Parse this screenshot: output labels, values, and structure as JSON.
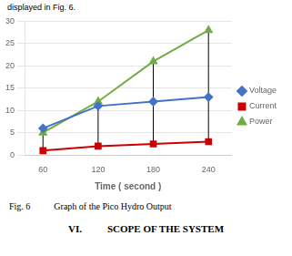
{
  "chart_data": {
    "type": "line",
    "x": [
      60,
      120,
      180,
      240
    ],
    "series": [
      {
        "name": "Voltage",
        "color": "#4472C4",
        "marker": "diamond",
        "values": [
          6,
          11,
          12,
          13
        ]
      },
      {
        "name": "Current",
        "color": "#CC0000",
        "marker": "square",
        "values": [
          1,
          2,
          2.5,
          3
        ]
      },
      {
        "name": "Power",
        "color": "#70AD47",
        "marker": "triangle",
        "values": [
          5,
          12,
          21,
          28
        ]
      }
    ],
    "xlabel": "Time ( second )",
    "xlim": [
      40,
      265
    ],
    "xticks": [
      60,
      120,
      180,
      240
    ],
    "ylim": [
      0,
      30
    ],
    "yticks": [
      0,
      5,
      10,
      15,
      20,
      25,
      30
    ],
    "grid": "y",
    "legend": "right",
    "annotations": [
      "displayed in Fig. 6.",
      "Fig. 6",
      "Graph of the Pico Hydro Output",
      "VI.",
      "SCOPE OF THE SYSTEM"
    ]
  }
}
